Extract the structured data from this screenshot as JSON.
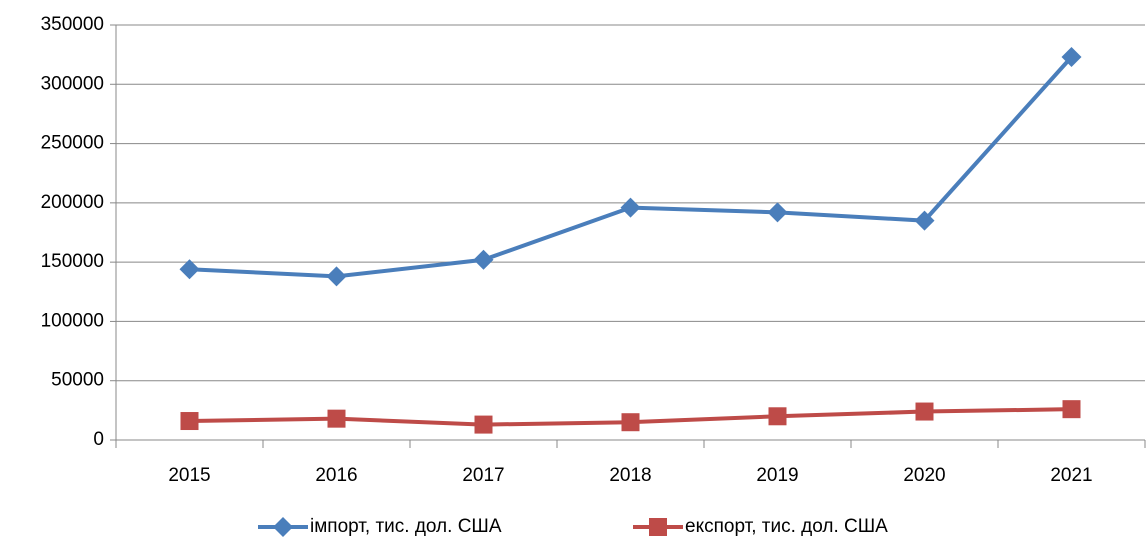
{
  "chart_data": {
    "type": "line",
    "categories": [
      "2015",
      "2016",
      "2017",
      "2018",
      "2019",
      "2020",
      "2021"
    ],
    "series": [
      {
        "name": "імпорт, тис. дол. США",
        "color": "#4a7ebb",
        "marker": "diamond",
        "values": [
          144000,
          138000,
          152000,
          196000,
          192000,
          185000,
          323000
        ]
      },
      {
        "name": "експорт, тис. дол. США",
        "color": "#be4b48",
        "marker": "square",
        "values": [
          16000,
          18000,
          13000,
          15000,
          20000,
          24000,
          26000
        ]
      }
    ],
    "ylim": [
      0,
      350000
    ],
    "yticks": [
      0,
      50000,
      100000,
      150000,
      200000,
      250000,
      300000,
      350000
    ],
    "grid": true,
    "legend": "bottom"
  }
}
